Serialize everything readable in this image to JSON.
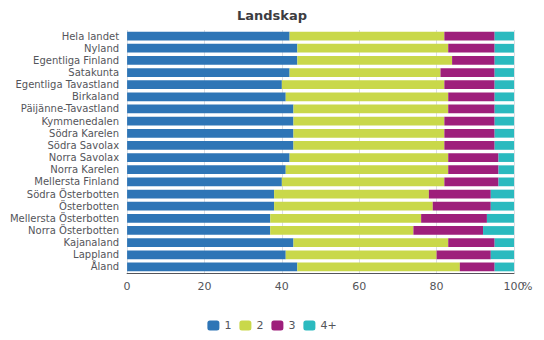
{
  "chart_data": {
    "type": "bar",
    "orientation": "horizontal",
    "stacked": true,
    "title": "Landskap",
    "xlabel": "%",
    "categories": [
      "Hela landet",
      "Nyland",
      "Egentliga Finland",
      "Satakunta",
      "Egentliga Tavastland",
      "Birkaland",
      "Päijänne-Tavastland",
      "Kymmenedalen",
      "Södra Karelen",
      "Södra Savolax",
      "Norra Savolax",
      "Norra Karelen",
      "Mellersta Finland",
      "Södra Österbotten",
      "Österbotten",
      "Mellersta Österbotten",
      "Norra Österbotten",
      "Kajanaland",
      "Lappland",
      "Åland"
    ],
    "series": [
      {
        "name": "1",
        "color": "#2E75B6",
        "values": [
          42,
          44,
          44,
          42,
          40,
          41,
          43,
          43,
          43,
          43,
          42,
          41,
          40,
          38,
          38,
          37,
          37,
          43,
          41,
          44
        ]
      },
      {
        "name": "2",
        "color": "#C9D84A",
        "values": [
          40,
          39,
          40,
          39,
          42,
          42,
          40,
          39,
          39,
          39,
          41,
          42,
          42,
          40,
          41,
          39,
          37,
          40,
          39,
          42
        ]
      },
      {
        "name": "3",
        "color": "#9E1F7B",
        "values": [
          13,
          12,
          11,
          14,
          13,
          12,
          12,
          13,
          13,
          13,
          13,
          13,
          14,
          16,
          15,
          17,
          18,
          12,
          14,
          9
        ]
      },
      {
        "name": "4+",
        "color": "#2BBABF",
        "values": [
          5,
          5,
          5,
          5,
          5,
          5,
          5,
          5,
          5,
          5,
          4,
          4,
          4,
          6,
          6,
          7,
          8,
          5,
          6,
          5
        ]
      }
    ],
    "xlim": [
      0,
      100
    ],
    "xticks": [
      0,
      20,
      40,
      60,
      80,
      100
    ],
    "grid": true,
    "legend": "bottom"
  }
}
